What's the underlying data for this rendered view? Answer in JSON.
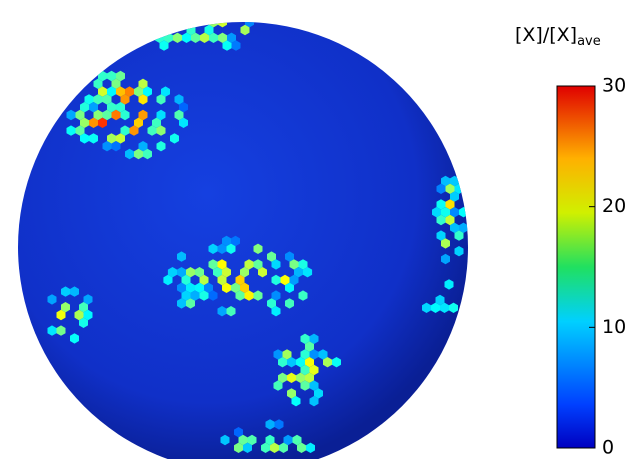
{
  "chart_data": {
    "type": "sphere-map",
    "colorbar": {
      "label": "[X]/[X]",
      "label_sub": "ave",
      "clim": [
        0,
        30
      ],
      "ticks": [
        0,
        10,
        20,
        30
      ],
      "colormap": "jet"
    }
  }
}
